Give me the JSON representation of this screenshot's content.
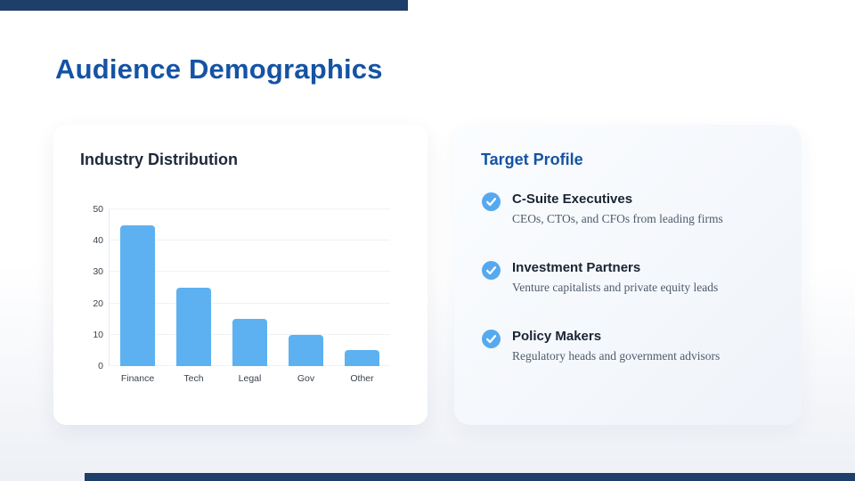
{
  "slide": {
    "title": "Audience Demographics"
  },
  "left_card": {
    "title": "Industry Distribution"
  },
  "chart_data": {
    "type": "bar",
    "title": "Industry Distribution",
    "categories": [
      "Finance",
      "Tech",
      "Legal",
      "Gov",
      "Other"
    ],
    "values": [
      45,
      25,
      15,
      10,
      5
    ],
    "xlabel": "",
    "ylabel": "",
    "ylim": [
      0,
      50
    ],
    "yticks": [
      0,
      10,
      20,
      30,
      40,
      50
    ],
    "grid": true,
    "legend": false,
    "bar_color": "#5db1f0"
  },
  "right_card": {
    "title": "Target Profile",
    "items": [
      {
        "icon": "check-circle-icon",
        "title": "C-Suite Executives",
        "description": "CEOs, CTOs, and CFOs from leading firms"
      },
      {
        "icon": "check-circle-icon",
        "title": "Investment Partners",
        "description": "Venture capitalists and private equity leads"
      },
      {
        "icon": "check-circle-icon",
        "title": "Policy Makers",
        "description": "Regulatory heads and government advisors"
      }
    ]
  },
  "colors": {
    "heading_blue": "#1553a4",
    "accent_navy": "#1e3f69",
    "bar_blue": "#5db1f0",
    "icon_blue": "#56a9ef",
    "card_title_navy": "#1d2939",
    "item_title_navy": "#1a2433",
    "description_gray": "#4f5b6b"
  }
}
